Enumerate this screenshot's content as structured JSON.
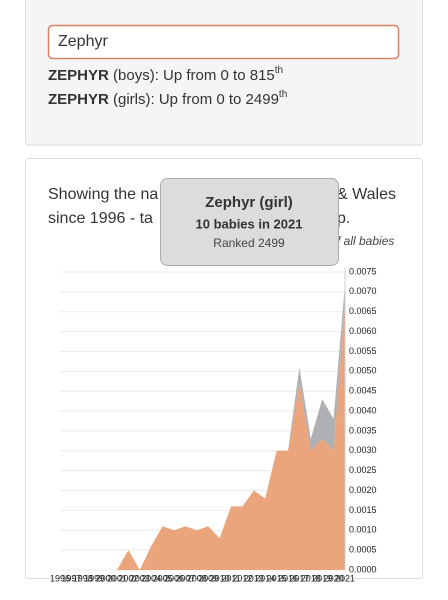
{
  "search": {
    "input_value": "Zephyr",
    "results": [
      {
        "name": "ZEPHYR",
        "text": "(boys): Up from 0 to 815",
        "suffix": "th"
      },
      {
        "name": "ZEPHYR",
        "text": "(girls): Up from 0 to 2499",
        "suffix": "th"
      }
    ]
  },
  "description": {
    "fragments": [
      "Showing the na",
      "& Wales",
      "since 1996 - ta",
      "p.",
      "f all babies"
    ]
  },
  "tooltip": {
    "title": "Zephyr (girl)",
    "line1": "10 babies in 2021",
    "line2": "Ranked 2499"
  },
  "chart_data": {
    "type": "stacked-area",
    "categories": [
      "1996",
      "1997",
      "1998",
      "1999",
      "2000",
      "2001",
      "2002",
      "2003",
      "2004",
      "2005",
      "2006",
      "2007",
      "2008",
      "2009",
      "2010",
      "2011",
      "2012",
      "2013",
      "2014",
      "2015",
      "2016",
      "2017",
      "2018",
      "2019",
      "2020",
      "2021"
    ],
    "series": [
      {
        "color": "#eaa57c",
        "values": [
          0,
          0,
          0,
          0,
          0,
          0,
          0.0005,
          0,
          0.0006,
          0.0011,
          0.001,
          0.0011,
          0.001,
          0.0011,
          0.0008,
          0.0016,
          0.0016,
          0.002,
          0.0018,
          0.003,
          0.003,
          0.0047,
          0.003,
          0.0033,
          0.003,
          0.0068
        ]
      },
      {
        "color": "#b0b0b4",
        "values": [
          0,
          0,
          0,
          0,
          0,
          0,
          0,
          0,
          0,
          0,
          0,
          0,
          0,
          0,
          0,
          0,
          0,
          0,
          0,
          0,
          0,
          0.0004,
          0.0003,
          0.001,
          0.0008,
          0.0004
        ]
      }
    ],
    "ylim": [
      0,
      0.0075
    ],
    "yticks": [
      {
        "value": 0,
        "label": "0.0000"
      },
      {
        "value": 0.0005,
        "label": "0.0005"
      },
      {
        "value": 0.001,
        "label": "0.0010"
      },
      {
        "value": 0.0015,
        "label": "0.0015"
      },
      {
        "value": 0.002,
        "label": "0.0020"
      },
      {
        "value": 0.0025,
        "label": "0.0025"
      },
      {
        "value": 0.003,
        "label": "0.0030"
      },
      {
        "value": 0.0035,
        "label": "0.0035"
      },
      {
        "value": 0.004,
        "label": "0.0040"
      },
      {
        "value": 0.0045,
        "label": "0.0045"
      },
      {
        "value": 0.005,
        "label": "0.0050"
      },
      {
        "value": 0.0055,
        "label": "0.0055"
      },
      {
        "value": 0.006,
        "label": "0.0060"
      },
      {
        "value": 0.0065,
        "label": "0.0065"
      },
      {
        "value": 0.007,
        "label": "0.0070"
      },
      {
        "value": 0.0075,
        "label": "0.0075"
      }
    ],
    "grid": true
  }
}
